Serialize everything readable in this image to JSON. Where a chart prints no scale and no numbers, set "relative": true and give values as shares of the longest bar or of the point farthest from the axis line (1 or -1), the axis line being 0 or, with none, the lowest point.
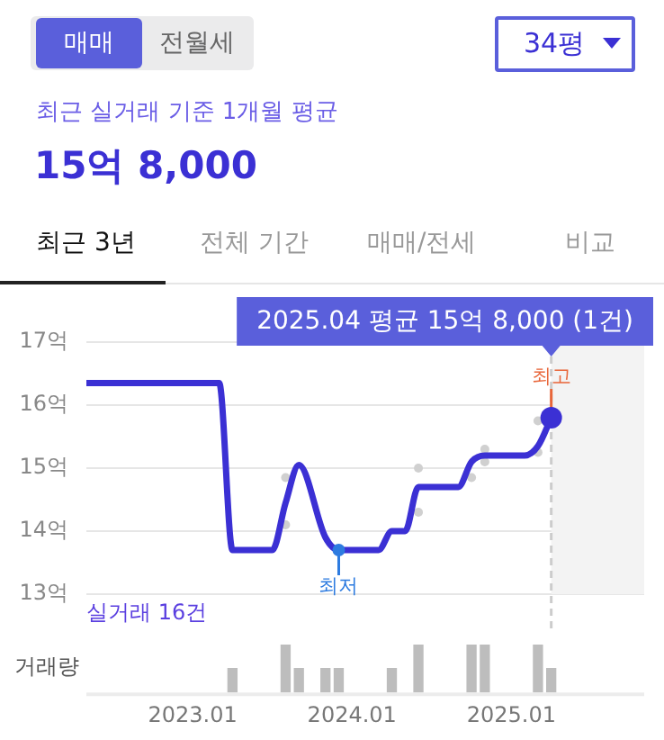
{
  "chart_data": [
    {
      "type": "line",
      "title": "15억 8,000",
      "subtitle": "최근 실거래 기준 1개월 평균",
      "annotations": [
        "매매",
        "전월세",
        "34평",
        "최근 3년",
        "전체 기간",
        "매매/전세",
        "비교",
        "실거래 16건",
        "2025.04 평균 15억 8,000 (1건)",
        {
          "text": "최고",
          "x": "2025-04",
          "y": 15.8
        },
        {
          "text": "최저",
          "x": "2023-12",
          "y": 13.7
        }
      ],
      "series": [
        {
          "color": "#3b30d4",
          "marker": "none",
          "x": [
            "2022-05",
            "2023-03",
            "2023-04",
            "2023-07",
            "2023-08",
            "2023-09",
            "2023-11",
            "2023-12",
            "2024-03",
            "2024-04",
            "2024-05",
            "2024-06",
            "2024-09",
            "2024-10",
            "2024-11",
            "2025-02",
            "2025-03",
            "2025-04"
          ],
          "values": [
            16.35,
            16.35,
            13.7,
            13.7,
            14.45,
            15.05,
            13.9,
            13.7,
            13.7,
            14.0,
            14.0,
            14.7,
            14.7,
            15.1,
            15.2,
            15.2,
            15.35,
            15.8
          ]
        },
        {
          "type": "scatter",
          "marker": "circle",
          "color": "#d0d0d0",
          "x": [
            "2023-08",
            "2023-08",
            "2024-06",
            "2024-06",
            "2024-10",
            "2024-11",
            "2024-11",
            "2025-03",
            "2025-03"
          ],
          "values": [
            14.85,
            14.1,
            15.0,
            14.3,
            14.85,
            15.3,
            15.1,
            15.75,
            15.25
          ]
        }
      ],
      "xlim": [
        "2022-05",
        "2025-11"
      ],
      "ylim": [
        13,
        17
      ],
      "yticks": [
        {
          "value": 17,
          "label": "17억"
        },
        {
          "value": 16,
          "label": "16억"
        },
        {
          "value": 15,
          "label": "15억"
        },
        {
          "value": 14,
          "label": "14억"
        },
        {
          "value": 13,
          "label": "13억"
        }
      ],
      "grid": "y",
      "legend": false,
      "tick_labels": "y",
      "ref_lines": [
        {
          "axis": "x",
          "value": "2025-04",
          "color": "#cccccc",
          "line_style": "dashed"
        }
      ],
      "bands": [
        {
          "axis": "x",
          "from": "2025-04",
          "to": "2025-11",
          "color": "#f3f3f3"
        }
      ]
    },
    {
      "type": "bar",
      "ylabel": "거래량",
      "relative": true,
      "color": "#bdbdbd",
      "x": [
        "2023-04",
        "2023-08",
        "2023-09",
        "2023-11",
        "2023-12",
        "2024-04",
        "2024-06",
        "2024-10",
        "2024-11",
        "2025-03",
        "2025-04"
      ],
      "values": [
        0.5,
        1,
        0.5,
        0.5,
        0.5,
        0.5,
        1,
        1,
        1,
        1,
        0.5
      ],
      "xlim": [
        "2022-05",
        "2025-11"
      ],
      "xticks": [
        {
          "value": "2023-01",
          "label": "2023.01"
        },
        {
          "value": "2024-01",
          "label": "2024.01"
        },
        {
          "value": "2025-01",
          "label": "2025.01"
        }
      ],
      "legend": false,
      "grid": false,
      "tick_labels": "x"
    }
  ]
}
